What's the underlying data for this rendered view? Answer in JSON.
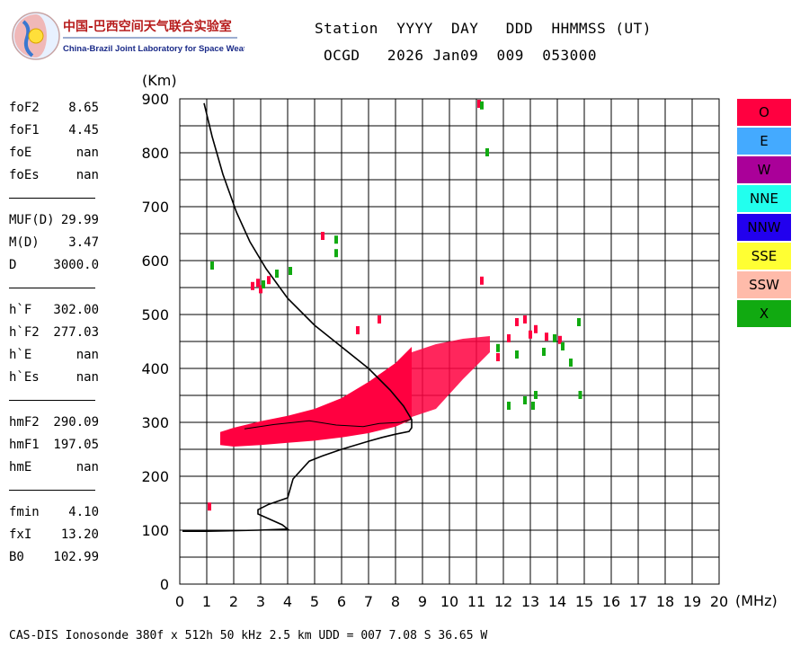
{
  "header": {
    "logo_title": "中国-巴西空间天气联合实验室",
    "logo_subtitle": "China-Brazil Joint Laboratory for Space Weather",
    "line1": "Station  YYYY  DAY   DDD  HHMMSS (UT)",
    "line2": "OCGD   2026 Jan09  009  053000"
  },
  "parameters": [
    {
      "label": "foF2",
      "value": "8.65"
    },
    {
      "label": "foF1",
      "value": "4.45"
    },
    {
      "label": "foE",
      "value": "nan"
    },
    {
      "label": "foEs",
      "value": "nan"
    },
    {
      "label": "MUF(D)",
      "value": "29.99"
    },
    {
      "label": "M(D)",
      "value": "3.47"
    },
    {
      "label": "D",
      "value": "3000.0"
    },
    {
      "label": "h`F",
      "value": "302.00"
    },
    {
      "label": "h`F2",
      "value": "277.03"
    },
    {
      "label": "h`E",
      "value": "nan"
    },
    {
      "label": "h`Es",
      "value": "nan"
    },
    {
      "label": "hmF2",
      "value": "290.09"
    },
    {
      "label": "hmF1",
      "value": "197.05"
    },
    {
      "label": "hmE",
      "value": "nan"
    },
    {
      "label": "fmin",
      "value": "4.10"
    },
    {
      "label": "fxI",
      "value": "13.20"
    },
    {
      "label": "B0",
      "value": "102.99"
    }
  ],
  "legend": [
    {
      "label": "O",
      "color": "#ff0040"
    },
    {
      "label": "E",
      "color": "#44aaff"
    },
    {
      "label": "W",
      "color": "#aa0099"
    },
    {
      "label": "NNE",
      "color": "#22ffee"
    },
    {
      "label": "NNW",
      "color": "#2200ee"
    },
    {
      "label": "SSE",
      "color": "#ffff33"
    },
    {
      "label": "SSW",
      "color": "#ffbbaa"
    },
    {
      "label": "X",
      "color": "#11aa11"
    }
  ],
  "footer": "CAS-DIS Ionosonde 380f x 512h 50 kHz 2.5 km UDD = 007 7.08 S 36.65 W",
  "chart_data": {
    "type": "scatter",
    "xlabel": "(MHz)",
    "ylabel": "(Km)",
    "xlim": [
      0,
      20
    ],
    "ylim": [
      0,
      900
    ],
    "xticks": [
      0,
      1,
      2,
      3,
      4,
      5,
      6,
      7,
      8,
      9,
      10,
      11,
      12,
      13,
      14,
      15,
      16,
      17,
      18,
      19,
      20
    ],
    "yticks": [
      0,
      100,
      200,
      300,
      400,
      500,
      600,
      700,
      800,
      900
    ],
    "grid": true,
    "o_trace_band": [
      {
        "x": 1.5,
        "ylow": 258,
        "yhigh": 282
      },
      {
        "x": 2.0,
        "ylow": 255,
        "yhigh": 290
      },
      {
        "x": 3.0,
        "ylow": 258,
        "yhigh": 302
      },
      {
        "x": 4.0,
        "ylow": 262,
        "yhigh": 312
      },
      {
        "x": 5.0,
        "ylow": 266,
        "yhigh": 325
      },
      {
        "x": 6.0,
        "ylow": 272,
        "yhigh": 345
      },
      {
        "x": 7.0,
        "ylow": 280,
        "yhigh": 375
      },
      {
        "x": 8.0,
        "ylow": 292,
        "yhigh": 410
      },
      {
        "x": 8.6,
        "ylow": 305,
        "yhigh": 440
      }
    ],
    "o_upper_band": [
      {
        "x": 8.6,
        "ylow": 310,
        "yhigh": 430
      },
      {
        "x": 9.5,
        "ylow": 325,
        "yhigh": 445
      },
      {
        "x": 10.5,
        "ylow": 380,
        "yhigh": 455
      },
      {
        "x": 11.5,
        "ylow": 430,
        "yhigh": 460
      }
    ],
    "o_points": [
      [
        2.9,
        558
      ],
      [
        2.7,
        552
      ],
      [
        3.3,
        563
      ],
      [
        3.0,
        546
      ],
      [
        1.1,
        143
      ],
      [
        11.1,
        890
      ],
      [
        11.2,
        562
      ],
      [
        5.3,
        645
      ],
      [
        12.5,
        485
      ],
      [
        12.8,
        490
      ],
      [
        13.2,
        472
      ],
      [
        13.6,
        458
      ],
      [
        13.0,
        462
      ],
      [
        14.1,
        452
      ],
      [
        6.6,
        470
      ],
      [
        7.4,
        490
      ],
      [
        11.8,
        420
      ],
      [
        12.2,
        455
      ]
    ],
    "x_points": [
      [
        1.2,
        590
      ],
      [
        3.1,
        555
      ],
      [
        3.6,
        575
      ],
      [
        4.1,
        580
      ],
      [
        11.2,
        887
      ],
      [
        11.4,
        800
      ],
      [
        5.8,
        638
      ],
      [
        5.8,
        613
      ],
      [
        14.8,
        485
      ],
      [
        14.2,
        440
      ],
      [
        14.5,
        410
      ],
      [
        12.5,
        425
      ],
      [
        13.1,
        330
      ],
      [
        13.2,
        350
      ],
      [
        12.8,
        340
      ],
      [
        12.2,
        330
      ],
      [
        14.85,
        350
      ],
      [
        11.8,
        437
      ],
      [
        13.5,
        430
      ],
      [
        13.9,
        455
      ]
    ],
    "profile": [
      [
        0.9,
        892
      ],
      [
        1.2,
        830
      ],
      [
        1.6,
        760
      ],
      [
        2.1,
        690
      ],
      [
        2.6,
        635
      ],
      [
        3.2,
        585
      ],
      [
        4.0,
        530
      ],
      [
        5.0,
        480
      ],
      [
        6.0,
        440
      ],
      [
        7.0,
        400
      ],
      [
        7.8,
        360
      ],
      [
        8.3,
        330
      ],
      [
        8.6,
        305
      ],
      [
        8.6,
        290
      ],
      [
        8.5,
        283
      ],
      [
        8.0,
        278
      ],
      [
        7.5,
        272
      ],
      [
        7.0,
        265
      ],
      [
        6.0,
        250
      ],
      [
        5.3,
        238
      ],
      [
        4.8,
        228
      ],
      [
        4.2,
        195
      ],
      [
        4.0,
        160
      ],
      [
        3.3,
        148
      ],
      [
        2.9,
        138
      ],
      [
        2.9,
        130
      ],
      [
        3.8,
        110
      ],
      [
        4.0,
        102
      ],
      [
        2.9,
        100
      ],
      [
        1.0,
        98
      ],
      [
        0.1,
        98
      ]
    ],
    "profile_inner": [
      [
        2.4,
        288
      ],
      [
        3.5,
        296
      ],
      [
        4.8,
        303
      ],
      [
        5.8,
        295
      ],
      [
        6.8,
        292
      ],
      [
        7.4,
        298
      ],
      [
        8.2,
        300
      ],
      [
        8.6,
        306
      ]
    ]
  }
}
